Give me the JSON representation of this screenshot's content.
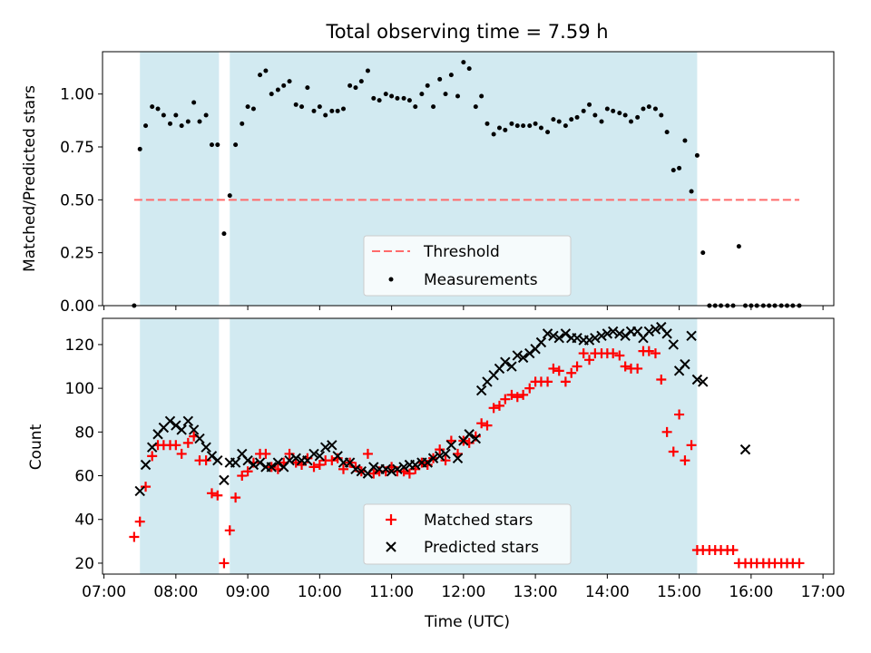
{
  "title": "Total observing time = 7.59 h",
  "colors": {
    "shade": "#add8e6",
    "threshold": "#ff6b6b",
    "matched": "#ff0000",
    "predicted": "#000000",
    "measurement": "#000000"
  },
  "x_ticks": [
    "07:00",
    "08:00",
    "09:00",
    "10:00",
    "11:00",
    "12:00",
    "13:00",
    "14:00",
    "15:00",
    "16:00",
    "17:00"
  ],
  "xlabel": "Time (UTC)",
  "chart_data": [
    {
      "type": "scatter",
      "ylabel": "Matched/Predicted stars",
      "xlim_hours": [
        6.98,
        17.15
      ],
      "ylim": [
        0,
        1.2
      ],
      "y_ticks": [
        "0.00",
        "0.25",
        "0.50",
        "0.75",
        "1.00"
      ],
      "y_tick_values": [
        0,
        0.25,
        0.5,
        0.75,
        1.0
      ],
      "shaded_intervals_hours": [
        [
          7.5,
          8.6
        ],
        [
          8.75,
          15.25
        ]
      ],
      "threshold": {
        "name": "Threshold",
        "value": 0.5,
        "x_range_hours": [
          7.42,
          16.67
        ],
        "style": "dashed"
      },
      "legend": {
        "entries": [
          "Threshold",
          "Measurements"
        ],
        "placement": "lower center"
      },
      "series": [
        {
          "name": "Measurements",
          "x_hours": [
            7.42,
            7.5,
            7.58,
            7.67,
            7.75,
            7.83,
            7.92,
            8.0,
            8.08,
            8.17,
            8.25,
            8.33,
            8.42,
            8.5,
            8.58,
            8.67,
            8.75,
            8.83,
            8.92,
            9.0,
            9.08,
            9.17,
            9.25,
            9.33,
            9.42,
            9.5,
            9.58,
            9.67,
            9.75,
            9.83,
            9.92,
            10.0,
            10.08,
            10.17,
            10.25,
            10.33,
            10.42,
            10.5,
            10.58,
            10.67,
            10.75,
            10.83,
            10.92,
            11.0,
            11.08,
            11.17,
            11.25,
            11.33,
            11.42,
            11.5,
            11.58,
            11.67,
            11.75,
            11.83,
            11.92,
            12.0,
            12.08,
            12.17,
            12.25,
            12.33,
            12.42,
            12.5,
            12.58,
            12.67,
            12.75,
            12.83,
            12.92,
            13.0,
            13.08,
            13.17,
            13.25,
            13.33,
            13.42,
            13.5,
            13.58,
            13.67,
            13.75,
            13.83,
            13.92,
            14.0,
            14.08,
            14.17,
            14.25,
            14.33,
            14.42,
            14.5,
            14.58,
            14.67,
            14.75,
            14.83,
            14.92,
            15.0,
            15.08,
            15.17,
            15.25,
            15.33,
            15.42,
            15.5,
            15.58,
            15.67,
            15.75,
            15.83,
            15.92,
            16.0,
            16.08,
            16.17,
            16.25,
            16.33,
            16.42,
            16.5,
            16.58,
            16.67
          ],
          "values": [
            0.0,
            0.74,
            0.85,
            0.94,
            0.93,
            0.9,
            0.86,
            0.9,
            0.85,
            0.87,
            0.96,
            0.87,
            0.9,
            0.76,
            0.76,
            0.34,
            0.52,
            0.76,
            0.86,
            0.94,
            0.93,
            1.09,
            1.11,
            1.0,
            1.02,
            1.04,
            1.06,
            0.95,
            0.94,
            1.03,
            0.92,
            0.94,
            0.9,
            0.92,
            0.92,
            0.93,
            1.04,
            1.03,
            1.06,
            1.11,
            0.98,
            0.97,
            1.0,
            0.99,
            0.98,
            0.98,
            0.97,
            0.94,
            1.0,
            1.04,
            0.94,
            1.07,
            1.0,
            1.09,
            0.99,
            1.15,
            1.12,
            0.94,
            0.99,
            0.86,
            0.81,
            0.84,
            0.83,
            0.86,
            0.85,
            0.85,
            0.85,
            0.86,
            0.84,
            0.82,
            0.88,
            0.87,
            0.85,
            0.88,
            0.89,
            0.92,
            0.95,
            0.9,
            0.87,
            0.93,
            0.92,
            0.91,
            0.9,
            0.87,
            0.89,
            0.93,
            0.94,
            0.93,
            0.9,
            0.82,
            0.64,
            0.65,
            0.78,
            0.54,
            0.71,
            0.25,
            0.0,
            0.0,
            0.0,
            0.0,
            0.0,
            0.28,
            0.0,
            0.0,
            0.0,
            0.0,
            0.0,
            0.0,
            0.0,
            0.0,
            0.0,
            0.0
          ]
        }
      ]
    },
    {
      "type": "scatter",
      "ylabel": "Count",
      "xlabel": "Time (UTC)",
      "xlim_hours": [
        6.98,
        17.15
      ],
      "ylim": [
        15,
        132
      ],
      "y_ticks": [
        "20",
        "40",
        "60",
        "80",
        "100",
        "120"
      ],
      "y_tick_values": [
        20,
        40,
        60,
        80,
        100,
        120
      ],
      "shaded_intervals_hours": [
        [
          7.5,
          8.6
        ],
        [
          8.75,
          15.25
        ]
      ],
      "legend": {
        "entries": [
          "Matched stars",
          "Predicted stars"
        ],
        "placement": "lower center"
      },
      "series": [
        {
          "name": "Matched stars",
          "marker": "plus",
          "x_hours": [
            7.42,
            7.5,
            7.58,
            7.67,
            7.75,
            7.83,
            7.92,
            8.0,
            8.08,
            8.17,
            8.25,
            8.33,
            8.42,
            8.5,
            8.58,
            8.67,
            8.75,
            8.83,
            8.92,
            9.0,
            9.08,
            9.17,
            9.25,
            9.33,
            9.42,
            9.5,
            9.58,
            9.67,
            9.75,
            9.83,
            9.92,
            10.0,
            10.08,
            10.17,
            10.25,
            10.33,
            10.42,
            10.5,
            10.58,
            10.67,
            10.75,
            10.83,
            10.92,
            11.0,
            11.08,
            11.17,
            11.25,
            11.33,
            11.42,
            11.5,
            11.58,
            11.67,
            11.75,
            11.83,
            11.92,
            12.0,
            12.08,
            12.17,
            12.25,
            12.33,
            12.42,
            12.5,
            12.58,
            12.67,
            12.75,
            12.83,
            12.92,
            13.0,
            13.08,
            13.17,
            13.25,
            13.33,
            13.42,
            13.5,
            13.58,
            13.67,
            13.75,
            13.83,
            13.92,
            14.0,
            14.08,
            14.17,
            14.25,
            14.33,
            14.42,
            14.5,
            14.58,
            14.67,
            14.75,
            14.83,
            14.92,
            15.0,
            15.08,
            15.17,
            15.25,
            15.33,
            15.42,
            15.5,
            15.58,
            15.67,
            15.75,
            15.83,
            15.92,
            16.0,
            16.08,
            16.17,
            16.25,
            16.33,
            16.42,
            16.5,
            16.58,
            16.67
          ],
          "values": [
            32,
            39,
            55,
            69,
            74,
            74,
            74,
            74,
            70,
            75,
            78,
            67,
            67,
            52,
            51,
            20,
            35,
            50,
            60,
            62,
            66,
            70,
            70,
            64,
            63,
            66,
            70,
            66,
            65,
            68,
            64,
            65,
            67,
            67,
            68,
            63,
            66,
            64,
            62,
            70,
            61,
            62,
            62,
            64,
            62,
            62,
            61,
            63,
            66,
            65,
            68,
            72,
            67,
            76,
            70,
            76,
            75,
            78,
            84,
            83,
            91,
            92,
            95,
            97,
            96,
            97,
            100,
            103,
            103,
            103,
            109,
            108,
            103,
            107,
            110,
            116,
            113,
            116,
            116,
            116,
            116,
            115,
            110,
            109,
            109,
            117,
            117,
            116,
            104,
            80,
            71,
            88,
            67,
            74,
            26,
            26,
            26,
            26,
            26,
            26,
            26,
            20,
            20,
            20,
            20,
            20,
            20,
            20,
            20,
            20,
            20,
            20
          ]
        },
        {
          "name": "Predicted stars",
          "marker": "x",
          "x_hours": [
            7.5,
            7.58,
            7.67,
            7.75,
            7.83,
            7.92,
            8.0,
            8.08,
            8.17,
            8.25,
            8.33,
            8.42,
            8.5,
            8.58,
            8.67,
            8.75,
            8.83,
            8.92,
            9.0,
            9.08,
            9.17,
            9.25,
            9.33,
            9.42,
            9.5,
            9.58,
            9.67,
            9.75,
            9.83,
            9.92,
            10.0,
            10.08,
            10.17,
            10.25,
            10.33,
            10.42,
            10.5,
            10.58,
            10.67,
            10.75,
            10.83,
            10.92,
            11.0,
            11.08,
            11.17,
            11.25,
            11.33,
            11.42,
            11.5,
            11.58,
            11.67,
            11.75,
            11.83,
            11.92,
            12.0,
            12.08,
            12.17,
            12.25,
            12.33,
            12.42,
            12.5,
            12.58,
            12.67,
            12.75,
            12.83,
            12.92,
            13.0,
            13.08,
            13.17,
            13.25,
            13.33,
            13.42,
            13.5,
            13.58,
            13.67,
            13.75,
            13.83,
            13.92,
            14.0,
            14.08,
            14.17,
            14.25,
            14.33,
            14.42,
            14.5,
            14.58,
            14.67,
            14.75,
            14.83,
            14.92,
            15.0,
            15.08,
            15.17,
            15.25,
            15.33,
            15.92
          ],
          "values": [
            53,
            65,
            73,
            79,
            82,
            85,
            83,
            81,
            85,
            81,
            77,
            73,
            69,
            67,
            58,
            66,
            66,
            70,
            67,
            65,
            66,
            64,
            64,
            66,
            64,
            67,
            68,
            67,
            67,
            70,
            69,
            73,
            74,
            69,
            66,
            66,
            63,
            62,
            61,
            64,
            63,
            63,
            62,
            63,
            64,
            65,
            65,
            66,
            66,
            68,
            69,
            70,
            74,
            68,
            76,
            79,
            77,
            99,
            103,
            106,
            109,
            112,
            110,
            115,
            114,
            116,
            118,
            121,
            125,
            124,
            123,
            125,
            123,
            123,
            122,
            122,
            123,
            124,
            125,
            126,
            125,
            124,
            126,
            126,
            123,
            126,
            127,
            128,
            125,
            120,
            108,
            111,
            124,
            104,
            103,
            72
          ]
        }
      ]
    }
  ]
}
